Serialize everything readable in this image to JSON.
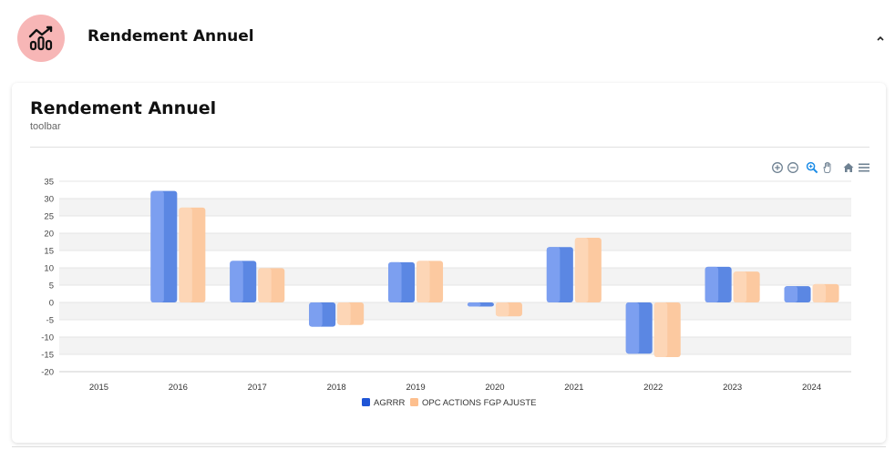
{
  "header": {
    "title": "Rendement Annuel",
    "icon": "line-bar-chart-icon",
    "icon_bg": "#f7b6b6",
    "collapse_icon": "chevron-up-icon"
  },
  "card": {
    "title": "Rendement Annuel",
    "subtitle": "toolbar"
  },
  "toolbar": {
    "icons": [
      "zoom-in-icon",
      "zoom-out-icon",
      "selection-zoom-icon",
      "pan-hand-icon",
      "reset-home-icon",
      "menu-icon"
    ],
    "active_color": "#1a8be6"
  },
  "chart_data": {
    "type": "bar",
    "categories": [
      "2015",
      "2016",
      "2017",
      "2018",
      "2019",
      "2020",
      "2021",
      "2022",
      "2023",
      "2024"
    ],
    "series": [
      {
        "name": "AGRRR",
        "color": "#3366dd",
        "values": [
          null,
          32.2,
          12.0,
          -7.0,
          11.6,
          -1.2,
          16.0,
          -14.8,
          10.3,
          4.7
        ]
      },
      {
        "name": "OPC ACTIONS FGP AJUSTE",
        "color": "#fdbf8e",
        "values": [
          null,
          27.4,
          9.9,
          -6.5,
          12.0,
          -4.0,
          18.7,
          -15.8,
          8.9,
          5.3
        ]
      }
    ],
    "yticks": [
      "35",
      "30",
      "25",
      "20",
      "15",
      "10",
      "5",
      "0",
      "-5",
      "-10",
      "-15",
      "-20"
    ],
    "ylim": [
      -20,
      35
    ],
    "grid": true,
    "legend_position": "bottom-center"
  }
}
